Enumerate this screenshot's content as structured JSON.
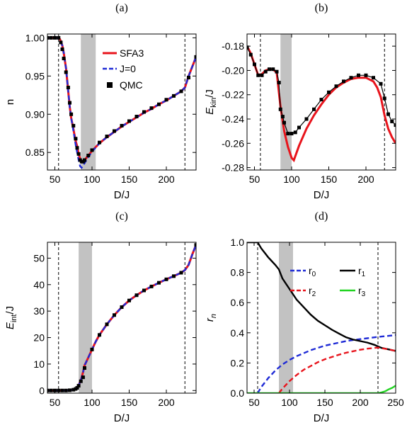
{
  "chart_data": [
    {
      "panel": "(a)",
      "type": "line",
      "xlabel": "D/J",
      "ylabel": "n",
      "xlim": [
        40,
        240
      ],
      "ylim": [
        0.827,
        1.005
      ],
      "xticks": [
        50,
        100,
        150,
        200
      ],
      "yticks": [
        0.85,
        0.9,
        0.95,
        1.0
      ],
      "ytick_labels": [
        "0.85",
        "0.90",
        "0.95",
        "1.00"
      ],
      "vlines": [
        55,
        225
      ],
      "shade": [
        85,
        105
      ],
      "legend": [
        "SFA3",
        "J=0",
        "QMC"
      ],
      "series": [
        {
          "name": "SFA3",
          "style": "red-solid",
          "x": [
            40,
            50,
            55,
            57,
            60,
            62,
            65,
            68,
            70,
            72,
            75,
            78,
            80,
            82,
            84,
            86,
            90,
            95,
            100,
            110,
            120,
            130,
            140,
            150,
            160,
            170,
            180,
            190,
            200,
            210,
            220,
            225,
            230,
            240
          ],
          "y": [
            1.0,
            1.0,
            1.0,
            0.998,
            0.99,
            0.98,
            0.96,
            0.93,
            0.91,
            0.895,
            0.88,
            0.865,
            0.858,
            0.848,
            0.842,
            0.838,
            0.84,
            0.846,
            0.852,
            0.862,
            0.87,
            0.877,
            0.884,
            0.89,
            0.896,
            0.902,
            0.907,
            0.913,
            0.918,
            0.924,
            0.93,
            0.935,
            0.95,
            0.975
          ]
        },
        {
          "name": "J=0",
          "style": "blue-dashed",
          "x": [
            40,
            50,
            55,
            57,
            60,
            62,
            65,
            68,
            70,
            72,
            75,
            78,
            80,
            82,
            84,
            86,
            90,
            95,
            100,
            110,
            120,
            130,
            140,
            150,
            160,
            170,
            180,
            190,
            200,
            210,
            220,
            225,
            230,
            240
          ],
          "y": [
            1.0,
            1.0,
            1.0,
            0.998,
            0.99,
            0.98,
            0.96,
            0.93,
            0.91,
            0.895,
            0.878,
            0.86,
            0.85,
            0.84,
            0.832,
            0.83,
            0.836,
            0.844,
            0.851,
            0.862,
            0.87,
            0.877,
            0.884,
            0.89,
            0.896,
            0.902,
            0.907,
            0.913,
            0.918,
            0.924,
            0.93,
            0.935,
            0.95,
            0.975
          ]
        },
        {
          "name": "QMC",
          "style": "black-square",
          "x": [
            40,
            45,
            50,
            55,
            58,
            60,
            62,
            65,
            68,
            70,
            72,
            75,
            78,
            80,
            82,
            84,
            86,
            88,
            90,
            95,
            100,
            110,
            120,
            130,
            140,
            150,
            160,
            170,
            180,
            190,
            200,
            210,
            220,
            230,
            240
          ],
          "y": [
            1.0,
            1.0,
            1.0,
            1.0,
            0.994,
            0.985,
            0.973,
            0.955,
            0.935,
            0.915,
            0.9,
            0.885,
            0.868,
            0.856,
            0.848,
            0.84,
            0.838,
            0.838,
            0.84,
            0.846,
            0.853,
            0.863,
            0.871,
            0.878,
            0.885,
            0.891,
            0.897,
            0.903,
            0.908,
            0.913,
            0.919,
            0.924,
            0.93,
            0.948,
            0.975
          ]
        }
      ]
    },
    {
      "panel": "(b)",
      "type": "line",
      "xlabel": "D/J",
      "ylabel": "Ekin/J",
      "xlim": [
        40,
        240
      ],
      "ylim": [
        -0.282,
        -0.17
      ],
      "xticks": [
        50,
        100,
        150,
        200
      ],
      "yticks": [
        -0.28,
        -0.26,
        -0.24,
        -0.22,
        -0.2,
        -0.18
      ],
      "ytick_labels": [
        "-0.28",
        "-0.26",
        "-0.24",
        "-0.22",
        "-0.20",
        "-0.18"
      ],
      "vlines": [
        58,
        225
      ],
      "shade": [
        85,
        100
      ],
      "series": [
        {
          "name": "SFA3",
          "style": "red-solid",
          "x": [
            40,
            45,
            50,
            55,
            60,
            65,
            70,
            75,
            80,
            85,
            90,
            95,
            100,
            103,
            110,
            120,
            130,
            140,
            150,
            160,
            170,
            180,
            190,
            200,
            210,
            215,
            220,
            225,
            230,
            235,
            240
          ],
          "y": [
            -0.18,
            -0.186,
            -0.195,
            -0.204,
            -0.203,
            -0.2,
            -0.199,
            -0.199,
            -0.202,
            -0.23,
            -0.25,
            -0.263,
            -0.272,
            -0.274,
            -0.262,
            -0.248,
            -0.237,
            -0.228,
            -0.22,
            -0.214,
            -0.21,
            -0.207,
            -0.206,
            -0.206,
            -0.209,
            -0.214,
            -0.222,
            -0.237,
            -0.248,
            -0.255,
            -0.26
          ]
        },
        {
          "name": "QMC",
          "style": "black-square-line",
          "x": [
            40,
            45,
            50,
            55,
            60,
            65,
            70,
            75,
            80,
            83,
            85,
            88,
            90,
            95,
            100,
            105,
            110,
            120,
            130,
            140,
            150,
            160,
            170,
            180,
            190,
            200,
            210,
            220,
            225,
            230,
            235,
            240
          ],
          "y": [
            -0.181,
            -0.187,
            -0.195,
            -0.204,
            -0.204,
            -0.201,
            -0.199,
            -0.199,
            -0.201,
            -0.21,
            -0.232,
            -0.238,
            -0.243,
            -0.252,
            -0.252,
            -0.251,
            -0.247,
            -0.24,
            -0.232,
            -0.224,
            -0.218,
            -0.213,
            -0.209,
            -0.206,
            -0.204,
            -0.204,
            -0.206,
            -0.211,
            -0.223,
            -0.236,
            -0.242,
            -0.245
          ]
        }
      ]
    },
    {
      "panel": "(c)",
      "type": "line",
      "xlabel": "D/J",
      "ylabel": "Eint/J",
      "xlim": [
        40,
        240
      ],
      "ylim": [
        -1,
        56
      ],
      "xticks": [
        50,
        100,
        150,
        200
      ],
      "yticks": [
        0,
        10,
        20,
        30,
        40,
        50
      ],
      "ytick_labels": [
        "0",
        "10",
        "20",
        "30",
        "40",
        "50"
      ],
      "vlines": [
        55,
        225
      ],
      "shade": [
        82,
        100
      ],
      "series": [
        {
          "name": "SFA3",
          "style": "red-solid",
          "x": [
            40,
            50,
            60,
            70,
            75,
            80,
            82,
            85,
            88,
            90,
            95,
            100,
            105,
            110,
            120,
            130,
            140,
            150,
            160,
            170,
            180,
            190,
            200,
            210,
            220,
            225,
            230,
            235,
            240
          ],
          "y": [
            0,
            0,
            0,
            0.1,
            0.3,
            1.0,
            2.0,
            4.0,
            7.0,
            9.5,
            12.5,
            15.5,
            18.5,
            21.0,
            25.0,
            28.5,
            31.5,
            34.0,
            36.0,
            37.8,
            39.3,
            40.7,
            42.0,
            43.2,
            44.5,
            45.5,
            47.5,
            51.5,
            55.0
          ]
        },
        {
          "name": "J=0",
          "style": "blue-dashed",
          "x": [
            40,
            50,
            60,
            70,
            75,
            80,
            82,
            85,
            88,
            90,
            95,
            100,
            105,
            110,
            120,
            130,
            140,
            150,
            160,
            170,
            180,
            190,
            200,
            210,
            220,
            225,
            230,
            235,
            240
          ],
          "y": [
            0,
            0,
            0,
            0.1,
            0.3,
            1.0,
            2.0,
            4.0,
            7.0,
            9.5,
            12.5,
            15.5,
            18.5,
            21.0,
            25.0,
            28.5,
            31.5,
            34.0,
            36.0,
            37.8,
            39.3,
            40.7,
            42.0,
            43.2,
            44.5,
            45.5,
            47.5,
            51.5,
            55.0
          ]
        },
        {
          "name": "QMC",
          "style": "black-square",
          "x": [
            40,
            45,
            50,
            55,
            60,
            65,
            70,
            75,
            78,
            80,
            82,
            85,
            88,
            90,
            100,
            110,
            120,
            130,
            140,
            150,
            160,
            170,
            180,
            190,
            200,
            210,
            220,
            240
          ],
          "y": [
            0,
            0,
            0,
            0,
            0,
            0,
            0.1,
            0.3,
            0.6,
            1.0,
            1.8,
            3.5,
            5.0,
            8.5,
            15.5,
            21.0,
            25.0,
            28.5,
            31.5,
            34.0,
            36.0,
            37.8,
            39.3,
            40.7,
            42.0,
            43.2,
            44.5,
            55.0
          ]
        }
      ]
    },
    {
      "panel": "(d)",
      "type": "line",
      "xlabel": "D/J",
      "ylabel": "rn",
      "xlim": [
        40,
        250
      ],
      "ylim": [
        0,
        1.0
      ],
      "xticks": [
        50,
        100,
        150,
        200,
        250
      ],
      "yticks": [
        0.0,
        0.2,
        0.4,
        0.6,
        0.8,
        1.0
      ],
      "ytick_labels": [
        "0.0",
        "0.2",
        "0.4",
        "0.6",
        "0.8",
        "1.0"
      ],
      "vlines": [
        55,
        225
      ],
      "shade": [
        85,
        105
      ],
      "legend": [
        "r0",
        "r1",
        "r2",
        "r3"
      ],
      "series": [
        {
          "name": "r0",
          "style": "blue-dashed",
          "x": [
            55,
            60,
            70,
            80,
            90,
            100,
            110,
            120,
            130,
            140,
            150,
            160,
            170,
            180,
            190,
            200,
            210,
            220,
            230,
            240,
            250
          ],
          "y": [
            0,
            0.04,
            0.1,
            0.15,
            0.19,
            0.22,
            0.245,
            0.265,
            0.285,
            0.3,
            0.315,
            0.325,
            0.335,
            0.345,
            0.352,
            0.358,
            0.364,
            0.37,
            0.375,
            0.38,
            0.385
          ]
        },
        {
          "name": "r1",
          "style": "black-solid",
          "x": [
            40,
            50,
            55,
            60,
            70,
            80,
            85,
            90,
            100,
            110,
            120,
            130,
            140,
            150,
            160,
            170,
            180,
            190,
            200,
            210,
            220,
            225,
            230,
            240,
            250
          ],
          "y": [
            1.0,
            1.0,
            1.0,
            0.96,
            0.9,
            0.85,
            0.82,
            0.76,
            0.69,
            0.62,
            0.57,
            0.52,
            0.48,
            0.45,
            0.42,
            0.395,
            0.37,
            0.355,
            0.345,
            0.335,
            0.32,
            0.31,
            0.3,
            0.29,
            0.28
          ]
        },
        {
          "name": "r2",
          "style": "red-dashed",
          "x": [
            85,
            90,
            100,
            110,
            120,
            130,
            140,
            150,
            160,
            170,
            180,
            190,
            200,
            210,
            220,
            225,
            230,
            240,
            250
          ],
          "y": [
            0,
            0.03,
            0.08,
            0.12,
            0.155,
            0.18,
            0.205,
            0.225,
            0.24,
            0.255,
            0.268,
            0.278,
            0.288,
            0.295,
            0.3,
            0.302,
            0.298,
            0.29,
            0.28
          ]
        },
        {
          "name": "r3",
          "style": "green-solid",
          "x": [
            40,
            100,
            150,
            200,
            220,
            225,
            230,
            235,
            240,
            245,
            250
          ],
          "y": [
            0,
            0,
            0,
            0,
            0,
            0,
            0.005,
            0.012,
            0.025,
            0.035,
            0.05
          ]
        }
      ]
    }
  ]
}
